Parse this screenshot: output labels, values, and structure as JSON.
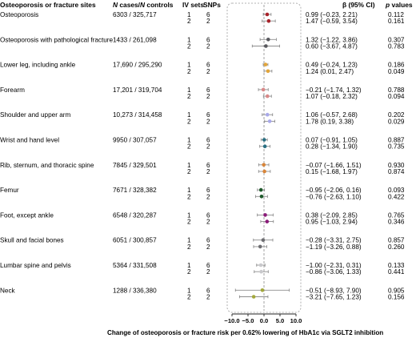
{
  "headers": {
    "site": "Osteoporosis or fracture sites",
    "cases_n": "N",
    "cases_text": " cases/",
    "controls_n": "N",
    "controls_text": " controls",
    "iv_sets": "IV sets",
    "snps": "SNPs",
    "beta": "β (95% CI)",
    "p_italic": "p",
    "p_text": " values"
  },
  "chart_data": {
    "type": "scatter",
    "subtype": "forest-plot",
    "xlabel": "Change of osteoporosis or fracture risk per 0.62% lowering of HbA1c via SGLT2 inhibition",
    "xlim": [
      -10,
      10
    ],
    "xticks": [
      -10.0,
      -5.0,
      0.0,
      5.0,
      10.0
    ],
    "xtick_labels": [
      "−10.0",
      "−5.0",
      "0.0",
      "5.0",
      "10.0"
    ],
    "reference_line": 0,
    "sites": [
      {
        "name": "Osteoporosis",
        "cases_controls": "6303 / 325,717",
        "color": "#a8222a",
        "rows": [
          {
            "iv_set": "1",
            "snps": "6",
            "beta": 0.99,
            "lo": -0.23,
            "hi": 2.21,
            "ci_text": "0.99 (−0.23, 2.21)",
            "p": "0.112"
          },
          {
            "iv_set": "2",
            "snps": "2",
            "beta": 1.47,
            "lo": -0.59,
            "hi": 3.54,
            "ci_text": "1.47 (−0.59, 3.54)",
            "p": "0.161"
          }
        ]
      },
      {
        "name": "Osteoporosis with pathological fracture",
        "cases_controls": "1433 / 261,098",
        "color": "#59595e",
        "rows": [
          {
            "iv_set": "1",
            "snps": "6",
            "beta": 1.32,
            "lo": -1.22,
            "hi": 3.86,
            "ci_text": "1.32 (−1.22, 3.86)",
            "p": "0.307"
          },
          {
            "iv_set": "2",
            "snps": "2",
            "beta": 0.6,
            "lo": -3.67,
            "hi": 4.87,
            "ci_text": "0.60 (−3.67, 4.87)",
            "p": "0.783"
          }
        ]
      },
      {
        "name": "Lower leg, including ankle",
        "cases_controls": "17,690 / 295,290",
        "color": "#e2a53a",
        "rows": [
          {
            "iv_set": "1",
            "snps": "6",
            "beta": 0.49,
            "lo": -0.24,
            "hi": 1.23,
            "ci_text": "0.49 (−0.24, 1.23)",
            "p": "0.186"
          },
          {
            "iv_set": "2",
            "snps": "2",
            "beta": 1.24,
            "lo": 0.01,
            "hi": 2.47,
            "ci_text": "1.24 (0.01, 2.47)",
            "p": "0.049"
          }
        ]
      },
      {
        "name": "Forearm",
        "cases_controls": "17,201 / 319,704",
        "color": "#d98888",
        "rows": [
          {
            "iv_set": "1",
            "snps": "6",
            "beta": -0.21,
            "lo": -1.74,
            "hi": 1.32,
            "ci_text": "−0.21 (−1.74, 1.32)",
            "p": "0.788"
          },
          {
            "iv_set": "2",
            "snps": "2",
            "beta": 1.07,
            "lo": -0.18,
            "hi": 2.32,
            "ci_text": "1.07 (−0.18, 2.32)",
            "p": "0.094"
          }
        ]
      },
      {
        "name": "Shoulder and upper arm",
        "cases_controls": "10,273 / 314,458",
        "color": "#a9a9ea",
        "rows": [
          {
            "iv_set": "1",
            "snps": "6",
            "beta": 1.06,
            "lo": -0.57,
            "hi": 2.68,
            "ci_text": "1.06 (−0.57, 2.68)",
            "p": "0.202"
          },
          {
            "iv_set": "2",
            "snps": "2",
            "beta": 1.78,
            "lo": 0.19,
            "hi": 3.38,
            "ci_text": "1.78 (0.19, 3.38)",
            "p": "0.029"
          }
        ]
      },
      {
        "name": "Wrist and hand level",
        "cases_controls": "9950 / 307,057",
        "color": "#2a6f82",
        "rows": [
          {
            "iv_set": "1",
            "snps": "6",
            "beta": 0.07,
            "lo": -0.91,
            "hi": 1.05,
            "ci_text": "0.07 (−0.91, 1.05)",
            "p": "0.887"
          },
          {
            "iv_set": "2",
            "snps": "2",
            "beta": 0.28,
            "lo": -1.34,
            "hi": 1.9,
            "ci_text": "0.28 (−1.34, 1.90)",
            "p": "0.735"
          }
        ]
      },
      {
        "name": "Rib, sternum, and thoracic spine",
        "cases_controls": "7845 / 329,501",
        "color": "#d8853a",
        "rows": [
          {
            "iv_set": "1",
            "snps": "6",
            "beta": -0.07,
            "lo": -1.66,
            "hi": 1.51,
            "ci_text": "−0.07 (−1.66, 1.51)",
            "p": "0.930"
          },
          {
            "iv_set": "2",
            "snps": "2",
            "beta": 0.15,
            "lo": -1.68,
            "hi": 1.97,
            "ci_text": "0.15 (−1.68, 1.97)",
            "p": "0.874"
          }
        ]
      },
      {
        "name": "Femur",
        "cases_controls": "7671 / 328,382",
        "color": "#1f5a2c",
        "rows": [
          {
            "iv_set": "1",
            "snps": "6",
            "beta": -0.95,
            "lo": -2.06,
            "hi": 0.16,
            "ci_text": "−0.95 (−2.06, 0.16)",
            "p": "0.093"
          },
          {
            "iv_set": "2",
            "snps": "2",
            "beta": -0.76,
            "lo": -2.63,
            "hi": 1.1,
            "ci_text": "−0.76 (−2.63, 1.10)",
            "p": "0.422"
          }
        ]
      },
      {
        "name": "Foot, except ankle",
        "cases_controls": "6548 / 320,287",
        "color": "#8a1a78",
        "rows": [
          {
            "iv_set": "1",
            "snps": "6",
            "beta": 0.38,
            "lo": -2.09,
            "hi": 2.85,
            "ci_text": "0.38 (−2.09, 2.85)",
            "p": "0.765"
          },
          {
            "iv_set": "2",
            "snps": "2",
            "beta": 0.95,
            "lo": -1.03,
            "hi": 2.94,
            "ci_text": "0.95 (−1.03, 2.94)",
            "p": "0.346"
          }
        ]
      },
      {
        "name": "Skull and facial bones",
        "cases_controls": "6051 / 300,857",
        "color": "#6e6e72",
        "rows": [
          {
            "iv_set": "1",
            "snps": "6",
            "beta": -0.28,
            "lo": -3.31,
            "hi": 2.75,
            "ci_text": "−0.28 (−3.31, 2.75)",
            "p": "0.857"
          },
          {
            "iv_set": "2",
            "snps": "2",
            "beta": -1.19,
            "lo": -3.26,
            "hi": 0.88,
            "ci_text": "−1.19 (−3.26, 0.88)",
            "p": "0.260"
          }
        ]
      },
      {
        "name": "Lumbar spine and pelvis",
        "cases_controls": "5364 / 331,508",
        "color": "#c9c9cc",
        "rows": [
          {
            "iv_set": "1",
            "snps": "6",
            "beta": -1.0,
            "lo": -2.31,
            "hi": 0.31,
            "ci_text": "−1.00 (−2.31, 0.31)",
            "p": "0.133"
          },
          {
            "iv_set": "2",
            "snps": "2",
            "beta": -0.86,
            "lo": -3.06,
            "hi": 1.33,
            "ci_text": "−0.86 (−3.06, 1.33)",
            "p": "0.441"
          }
        ]
      },
      {
        "name": "Neck",
        "cases_controls": "1288 / 336,380",
        "color": "#a3a83c",
        "rows": [
          {
            "iv_set": "1",
            "snps": "6",
            "beta": -0.51,
            "lo": -8.93,
            "hi": 7.9,
            "ci_text": "−0.51 (−8.93, 7.90)",
            "p": "0.905"
          },
          {
            "iv_set": "2",
            "snps": "2",
            "beta": -3.21,
            "lo": -7.65,
            "hi": 1.23,
            "ci_text": "−3.21 (−7.65, 1.23)",
            "p": "0.156"
          }
        ]
      }
    ]
  }
}
